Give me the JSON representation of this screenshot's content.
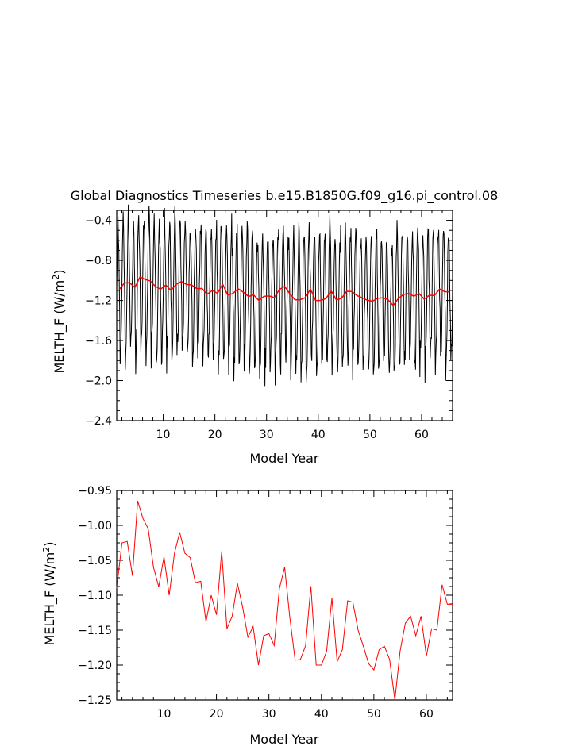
{
  "chart_data": [
    {
      "type": "line",
      "title": "Global Diagnostics Timeseries b.e15.B1850G.f09_g16.pi_control.08",
      "xlabel": "Model Year",
      "ylabel": "MELTH_F (W/m²)",
      "ylabel_main": "MELTH_F (W/m",
      "ylabel_sup": "2",
      "ylabel_end": ")",
      "xlim": [
        1,
        66
      ],
      "ylim": [
        -2.4,
        -0.3
      ],
      "xticks": [
        "10",
        "20",
        "30",
        "40",
        "50",
        "60"
      ],
      "yticks": [
        "-0.4",
        "-0.8",
        "-1.2",
        "-1.6",
        "-2.0",
        "-2.4"
      ],
      "series": [
        {
          "color": "#000000",
          "monthly": true,
          "note_values": "monthly seasonal cycle, ranges approx -0.5 to -2.15"
        },
        {
          "color": "#ff0000",
          "ref": "annual"
        }
      ]
    },
    {
      "type": "line",
      "xlabel": "Model Year",
      "ylabel": "MELTH_F (W/m²)",
      "ylabel_main": "MELTH_F (W/m",
      "ylabel_sup": "2",
      "ylabel_end": ")",
      "xlim": [
        1,
        65
      ],
      "ylim": [
        -1.25,
        -0.95
      ],
      "xticks": [
        "10",
        "20",
        "30",
        "40",
        "50",
        "60"
      ],
      "yticks": [
        "-0.95",
        "-1.00",
        "-1.05",
        "-1.10",
        "-1.15",
        "-1.20",
        "-1.25"
      ],
      "series": [
        {
          "color": "#ff0000",
          "x": [
            1,
            2,
            3,
            4,
            5,
            6,
            7,
            8,
            9,
            10,
            11,
            12,
            13,
            14,
            15,
            16,
            17,
            18,
            19,
            20,
            21,
            22,
            23,
            24,
            25,
            26,
            27,
            28,
            29,
            30,
            31,
            32,
            33,
            34,
            35,
            36,
            37,
            38,
            39,
            40,
            41,
            42,
            43,
            44,
            45,
            46,
            47,
            48,
            49,
            50,
            51,
            52,
            53,
            54,
            55,
            56,
            57,
            58,
            59,
            60,
            61,
            62,
            63,
            64,
            65
          ],
          "values": [
            -1.09,
            -1.025,
            -1.023,
            -1.072,
            -0.965,
            -0.99,
            -1.005,
            -1.06,
            -1.088,
            -1.045,
            -1.1,
            -1.04,
            -1.01,
            -1.04,
            -1.046,
            -1.082,
            -1.08,
            -1.138,
            -1.1,
            -1.128,
            -1.037,
            -1.148,
            -1.13,
            -1.083,
            -1.117,
            -1.16,
            -1.145,
            -1.2,
            -1.158,
            -1.155,
            -1.172,
            -1.09,
            -1.06,
            -1.133,
            -1.193,
            -1.192,
            -1.172,
            -1.087,
            -1.2,
            -1.2,
            -1.18,
            -1.104,
            -1.195,
            -1.178,
            -1.108,
            -1.11,
            -1.15,
            -1.173,
            -1.198,
            -1.207,
            -1.178,
            -1.173,
            -1.192,
            -1.25,
            -1.18,
            -1.14,
            -1.13,
            -1.158,
            -1.13,
            -1.187,
            -1.148,
            -1.15,
            -1.085,
            -1.113,
            -1.113
          ]
        }
      ]
    }
  ]
}
